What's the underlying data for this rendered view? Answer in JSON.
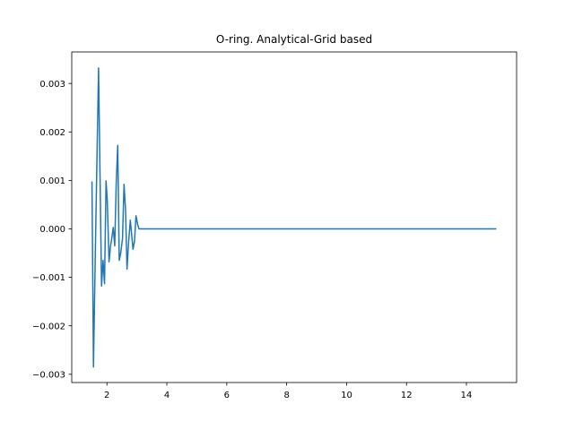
{
  "chart_data": {
    "type": "line",
    "title": "O-ring. Analytical-Grid based",
    "xlabel": "",
    "ylabel": "",
    "xlim": [
      0.825,
      15.675
    ],
    "ylim": [
      -0.00317,
      0.00365
    ],
    "xticks": [
      2,
      4,
      6,
      8,
      10,
      12,
      14
    ],
    "yticks": [
      -0.003,
      -0.002,
      -0.001,
      0.0,
      0.001,
      0.002,
      0.003
    ],
    "ytick_labels": [
      "−0.003",
      "−0.002",
      "−0.001",
      "0.000",
      "0.001",
      "0.002",
      "0.003"
    ],
    "grid": false,
    "legend": "none",
    "colors": {
      "line": "#1f77b4"
    },
    "series": [
      {
        "x": [
          1.5,
          1.55,
          1.62,
          1.72,
          1.82,
          1.87,
          1.92,
          1.97,
          2.01,
          2.07,
          2.12,
          2.16,
          2.21,
          2.26,
          2.31,
          2.36,
          2.41,
          2.46,
          2.52,
          2.57,
          2.62,
          2.67,
          2.72,
          2.78,
          2.87,
          2.92,
          2.97,
          3.02,
          3.07,
          3.12,
          3.18,
          3.23,
          3.3,
          4.0,
          6.0,
          8.0,
          10.0,
          12.0,
          14.0,
          15.0
        ],
        "y": [
          0.00098,
          -0.00285,
          -0.0002,
          0.00332,
          -0.00118,
          -0.00065,
          -0.00113,
          0.00099,
          0.0006,
          -0.00068,
          -0.00035,
          -0.0002,
          3e-05,
          -0.00035,
          0.00095,
          0.00172,
          -0.00065,
          -0.0005,
          -0.0002,
          0.00092,
          0.0004,
          -0.00083,
          -0.0003,
          0.00018,
          -0.00042,
          -0.00025,
          0.00027,
          0.0001,
          0.0,
          0.0,
          0.0,
          0.0,
          0.0,
          0.0,
          0.0,
          0.0,
          0.0,
          0.0,
          0.0,
          0.0
        ]
      }
    ]
  }
}
